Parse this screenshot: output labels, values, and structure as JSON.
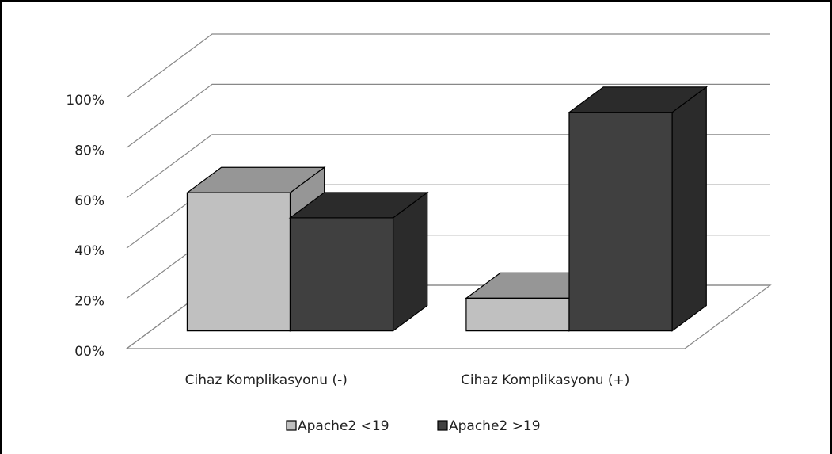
{
  "chart_data": {
    "type": "bar3d",
    "categories": [
      "Cihaz Komplikasyonu (-)",
      "Cihaz Komplikasyonu (+)"
    ],
    "series": [
      {
        "name": "Apache2 <19",
        "color": "#c0c0c0",
        "top_color": "#969696",
        "values": [
          55,
          13
        ]
      },
      {
        "name": "Apache2 >19",
        "color": "#404040",
        "top_color": "#2b2b2b",
        "values": [
          45,
          87
        ]
      }
    ],
    "ylim": [
      0,
      100
    ],
    "yticks": [
      {
        "value": 0,
        "label": "00%"
      },
      {
        "value": 20,
        "label": "20%"
      },
      {
        "value": 40,
        "label": "40%"
      },
      {
        "value": 60,
        "label": "60%"
      },
      {
        "value": 80,
        "label": "80%"
      },
      {
        "value": 100,
        "label": "100%"
      }
    ],
    "grid": true,
    "legend": "bottom"
  }
}
